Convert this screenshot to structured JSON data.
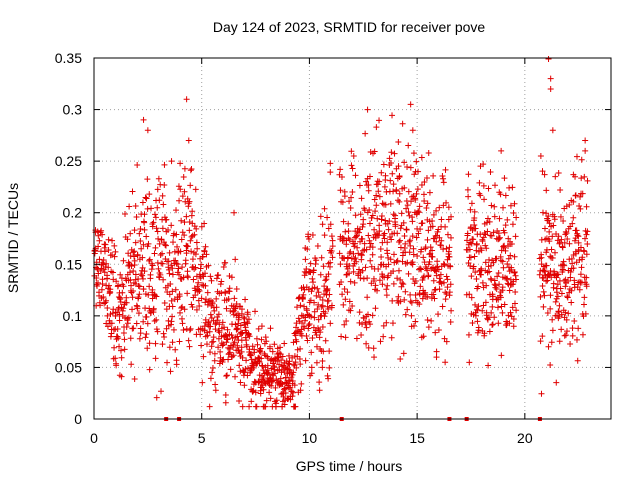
{
  "chart_data": {
    "type": "scatter",
    "title": "Day 124 of 2023, SRMTID for receiver pove",
    "xlabel": "GPS time / hours",
    "ylabel": "SRMTID / TECUs",
    "xlim": [
      0,
      24
    ],
    "ylim": [
      0,
      0.35
    ],
    "x_ticks": [
      0,
      5,
      10,
      15,
      20
    ],
    "x_tick_labels": [
      "0",
      "5",
      "10",
      "15",
      "20"
    ],
    "y_ticks": [
      0,
      0.05,
      0.1,
      0.15,
      0.2,
      0.25,
      0.3,
      0.35
    ],
    "y_tick_labels": [
      "0",
      "0.05",
      "0.1",
      "0.15",
      "0.2",
      "0.25",
      "0.3",
      "0.35"
    ],
    "grid": true,
    "marker": "+",
    "color": "#e00000",
    "trend": [
      [
        0.0,
        0.16
      ],
      [
        0.5,
        0.14
      ],
      [
        1.0,
        0.105
      ],
      [
        1.3,
        0.1
      ],
      [
        1.6,
        0.14
      ],
      [
        2.0,
        0.15
      ],
      [
        2.5,
        0.16
      ],
      [
        3.0,
        0.14
      ],
      [
        3.5,
        0.14
      ],
      [
        4.0,
        0.15
      ],
      [
        4.5,
        0.165
      ],
      [
        5.0,
        0.11
      ],
      [
        5.5,
        0.09
      ],
      [
        6.0,
        0.09
      ],
      [
        6.5,
        0.085
      ],
      [
        7.0,
        0.065
      ],
      [
        7.5,
        0.05
      ],
      [
        8.0,
        0.045
      ],
      [
        8.5,
        0.04
      ],
      [
        9.0,
        0.035
      ],
      [
        9.3,
        0.05
      ],
      [
        9.7,
        0.1
      ],
      [
        10.0,
        0.12
      ],
      [
        10.5,
        0.1
      ],
      [
        11.0,
        0.15
      ],
      [
        11.5,
        0.155
      ],
      [
        12.0,
        0.16
      ],
      [
        12.5,
        0.16
      ],
      [
        13.0,
        0.165
      ],
      [
        13.5,
        0.17
      ],
      [
        14.0,
        0.175
      ],
      [
        14.5,
        0.17
      ],
      [
        15.0,
        0.165
      ],
      [
        15.5,
        0.16
      ],
      [
        16.0,
        0.155
      ],
      [
        16.5,
        0.14
      ],
      [
        17.3,
        0.16
      ],
      [
        18.0,
        0.15
      ],
      [
        18.5,
        0.14
      ],
      [
        19.0,
        0.15
      ],
      [
        19.5,
        0.145
      ],
      [
        20.0,
        0.13
      ],
      [
        20.7,
        0.14
      ],
      [
        21.0,
        0.17
      ],
      [
        21.5,
        0.14
      ],
      [
        22.0,
        0.15
      ],
      [
        22.5,
        0.165
      ],
      [
        22.9,
        0.18
      ]
    ],
    "spread": [
      [
        0.0,
        0.02
      ],
      [
        1.0,
        0.03
      ],
      [
        2.0,
        0.04
      ],
      [
        3.0,
        0.05
      ],
      [
        4.0,
        0.05
      ],
      [
        5.0,
        0.03
      ],
      [
        6.0,
        0.03
      ],
      [
        7.0,
        0.025
      ],
      [
        8.0,
        0.02
      ],
      [
        9.0,
        0.015
      ],
      [
        10.0,
        0.03
      ],
      [
        11.0,
        0.04
      ],
      [
        12.0,
        0.045
      ],
      [
        13.0,
        0.05
      ],
      [
        14.0,
        0.05
      ],
      [
        15.0,
        0.045
      ],
      [
        16.0,
        0.04
      ],
      [
        17.0,
        0.035
      ],
      [
        18.0,
        0.04
      ],
      [
        19.0,
        0.04
      ],
      [
        20.0,
        0.04
      ],
      [
        21.0,
        0.05
      ],
      [
        22.0,
        0.04
      ],
      [
        23.0,
        0.04
      ]
    ],
    "data_segments": [
      [
        0.0,
        1.7
      ],
      [
        1.7,
        4.9
      ],
      [
        4.9,
        11.1
      ],
      [
        11.4,
        16.6
      ],
      [
        17.3,
        19.6
      ],
      [
        20.7,
        22.9
      ]
    ],
    "point_spacing_hours": 0.025,
    "notable_points": [
      [
        2.3,
        0.29
      ],
      [
        2.5,
        0.28
      ],
      [
        3.6,
        0.25
      ],
      [
        4.3,
        0.31
      ],
      [
        4.4,
        0.27
      ],
      [
        6.5,
        0.2
      ],
      [
        12.7,
        0.3
      ],
      [
        14.7,
        0.305
      ],
      [
        14.8,
        0.28
      ],
      [
        18.9,
        0.26
      ],
      [
        21.1,
        0.35
      ],
      [
        21.2,
        0.33
      ],
      [
        21.2,
        0.32
      ],
      [
        21.3,
        0.28
      ],
      [
        22.8,
        0.27
      ],
      [
        22.8,
        0.26
      ],
      [
        8.2,
        0.02
      ],
      [
        9.0,
        0.02
      ],
      [
        9.4,
        0.075
      ],
      [
        10.6,
        0.05
      ],
      [
        13.0,
        0.06
      ],
      [
        15.9,
        0.06
      ],
      [
        16.3,
        0.055
      ],
      [
        21.1,
        0.07
      ]
    ],
    "gap_markers_x": [
      3.35,
      3.95,
      11.5,
      16.5,
      17.3,
      20.7
    ]
  }
}
